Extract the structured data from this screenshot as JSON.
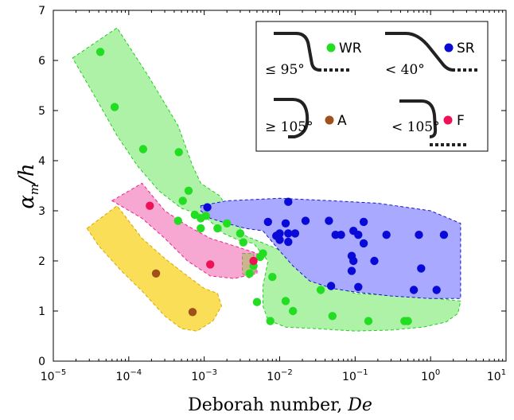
{
  "chart_data": {
    "type": "scatter",
    "x_scale": "log",
    "xlim": [
      1e-05,
      10
    ],
    "ylim": [
      0,
      7
    ],
    "x_ticks": [
      {
        "value": 1e-05,
        "base": "10",
        "exp": "−5"
      },
      {
        "value": 0.0001,
        "base": "10",
        "exp": "−4"
      },
      {
        "value": 0.001,
        "base": "10",
        "exp": "−3"
      },
      {
        "value": 0.01,
        "base": "10",
        "exp": "−2"
      },
      {
        "value": 0.1,
        "base": "10",
        "exp": "−1"
      },
      {
        "value": 1,
        "base": "10",
        "exp": "0"
      },
      {
        "value": 10,
        "base": "10",
        "exp": "1"
      }
    ],
    "y_ticks": [
      "0",
      "1",
      "2",
      "3",
      "4",
      "5",
      "6",
      "7"
    ],
    "xlabel": "Deborah number, De",
    "xlabel_prefix": "Deborah number, ",
    "xlabel_var": "De",
    "ylabel": "αm/h",
    "ylabel_main": "α",
    "ylabel_sub": "m",
    "ylabel_rest": "/h",
    "legend_position": "top-right",
    "grid": false,
    "legend": [
      {
        "key": "WR",
        "label": "WR",
        "color": "#22dd22",
        "condition": "≤ 95°"
      },
      {
        "key": "SR",
        "label": "SR",
        "color": "#0a0ad8",
        "condition": "< 40°"
      },
      {
        "key": "A",
        "label": "A",
        "color": "#a0501a",
        "condition": "≥ 105°"
      },
      {
        "key": "F",
        "label": "F",
        "color": "#ee1155",
        "condition": "< 105°"
      }
    ],
    "regions": [
      {
        "name": "WR",
        "fill": "#aef2a8",
        "stroke": "#22cc22",
        "boundary": [
          [
            1.8e-05,
            6.05
          ],
          [
            7e-05,
            6.65
          ],
          [
            0.00018,
            5.7
          ],
          [
            0.00045,
            4.7
          ],
          [
            0.0007,
            3.9
          ],
          [
            0.0009,
            3.55
          ],
          [
            0.0016,
            3.3
          ],
          [
            0.0035,
            2.5
          ],
          [
            0.009,
            2.25
          ],
          [
            0.018,
            1.95
          ],
          [
            0.04,
            1.55
          ],
          [
            0.1,
            1.35
          ],
          [
            0.4,
            1.3
          ],
          [
            1.2,
            1.25
          ],
          [
            2.5,
            1.2
          ],
          [
            2.3,
            0.95
          ],
          [
            1.6,
            0.78
          ],
          [
            0.8,
            0.68
          ],
          [
            0.3,
            0.62
          ],
          [
            0.1,
            0.6
          ],
          [
            0.03,
            0.65
          ],
          [
            0.012,
            0.68
          ],
          [
            0.007,
            0.82
          ],
          [
            0.006,
            1.1
          ],
          [
            0.006,
            1.5
          ],
          [
            0.007,
            2.0
          ],
          [
            0.0045,
            2.35
          ],
          [
            0.003,
            2.4
          ],
          [
            0.0018,
            2.55
          ],
          [
            0.001,
            2.9
          ],
          [
            0.0005,
            3.05
          ],
          [
            0.00025,
            3.4
          ],
          [
            0.00013,
            3.9
          ],
          [
            7e-05,
            4.5
          ],
          [
            3.5e-05,
            5.3
          ],
          [
            1.8e-05,
            6.05
          ]
        ]
      },
      {
        "name": "SR",
        "fill": "#a9a9ff",
        "stroke": "#1515cc",
        "boundary": [
          [
            0.0009,
            3.1
          ],
          [
            0.002,
            3.2
          ],
          [
            0.01,
            3.25
          ],
          [
            0.05,
            3.2
          ],
          [
            0.2,
            3.15
          ],
          [
            1,
            3.0
          ],
          [
            2.5,
            2.75
          ],
          [
            2.5,
            1.25
          ],
          [
            1,
            1.25
          ],
          [
            0.3,
            1.3
          ],
          [
            0.1,
            1.38
          ],
          [
            0.05,
            1.45
          ],
          [
            0.025,
            1.6
          ],
          [
            0.015,
            1.9
          ],
          [
            0.01,
            2.2
          ],
          [
            0.006,
            2.6
          ],
          [
            0.0035,
            2.65
          ],
          [
            0.002,
            2.75
          ],
          [
            0.0012,
            2.85
          ],
          [
            0.0009,
            3.0
          ],
          [
            0.0009,
            3.1
          ]
        ]
      },
      {
        "name": "F",
        "fill": "#f7a8d2",
        "stroke": "#ee2288",
        "boundary": [
          [
            6e-05,
            3.2
          ],
          [
            0.00015,
            3.55
          ],
          [
            0.0003,
            3.0
          ],
          [
            0.0006,
            2.7
          ],
          [
            0.0012,
            2.45
          ],
          [
            0.0025,
            2.3
          ],
          [
            0.005,
            2.15
          ],
          [
            0.005,
            1.75
          ],
          [
            0.0035,
            1.7
          ],
          [
            0.0025,
            1.65
          ],
          [
            0.0012,
            1.7
          ],
          [
            0.0006,
            2.0
          ],
          [
            0.0003,
            2.45
          ],
          [
            0.00015,
            2.85
          ],
          [
            6e-05,
            3.2
          ]
        ]
      },
      {
        "name": "A",
        "fill": "#fade58",
        "stroke": "#d6a800",
        "boundary": [
          [
            2.8e-05,
            2.65
          ],
          [
            7e-05,
            3.1
          ],
          [
            0.00015,
            2.45
          ],
          [
            0.0003,
            2.05
          ],
          [
            0.0006,
            1.7
          ],
          [
            0.001,
            1.45
          ],
          [
            0.0015,
            1.35
          ],
          [
            0.0017,
            1.1
          ],
          [
            0.0013,
            0.8
          ],
          [
            0.0008,
            0.6
          ],
          [
            0.0005,
            0.65
          ],
          [
            0.0003,
            0.9
          ],
          [
            0.00015,
            1.4
          ],
          [
            8e-05,
            1.8
          ],
          [
            4e-05,
            2.3
          ],
          [
            2.8e-05,
            2.65
          ]
        ]
      },
      {
        "name": "A/F overlap",
        "fill": "#c9b58e",
        "stroke": "#9a8866",
        "boundary": [
          [
            0.0032,
            2.15
          ],
          [
            0.0045,
            2.15
          ],
          [
            0.0048,
            1.8
          ],
          [
            0.004,
            1.65
          ],
          [
            0.0032,
            1.75
          ],
          [
            0.0032,
            2.15
          ]
        ]
      }
    ],
    "series": [
      {
        "name": "WR",
        "color": "#22dd22",
        "points": [
          [
            4.2e-05,
            6.17
          ],
          [
            6.5e-05,
            5.07
          ],
          [
            0.000155,
            4.23
          ],
          [
            0.00046,
            4.17
          ],
          [
            0.00052,
            3.2
          ],
          [
            0.00062,
            3.4
          ],
          [
            0.00075,
            2.92
          ],
          [
            0.0009,
            2.85
          ],
          [
            0.00105,
            2.9
          ],
          [
            0.00045,
            2.8
          ],
          [
            0.0009,
            2.65
          ],
          [
            0.0015,
            2.65
          ],
          [
            0.002,
            2.75
          ],
          [
            0.003,
            2.55
          ],
          [
            0.0033,
            2.37
          ],
          [
            0.004,
            1.75
          ],
          [
            0.0045,
            1.9
          ],
          [
            0.0055,
            2.08
          ],
          [
            0.006,
            2.15
          ],
          [
            0.008,
            1.68
          ],
          [
            0.005,
            1.18
          ],
          [
            0.0075,
            0.8
          ],
          [
            0.012,
            1.2
          ],
          [
            0.015,
            1.0
          ],
          [
            0.035,
            1.42
          ],
          [
            0.05,
            0.9
          ],
          [
            0.15,
            0.8
          ],
          [
            0.45,
            0.8
          ],
          [
            0.5,
            0.8
          ]
        ]
      },
      {
        "name": "SR",
        "color": "#0a0ad8",
        "points": [
          [
            0.0011,
            3.07
          ],
          [
            0.013,
            3.18
          ],
          [
            0.007,
            2.78
          ],
          [
            0.012,
            2.75
          ],
          [
            0.022,
            2.8
          ],
          [
            0.045,
            2.8
          ],
          [
            0.009,
            2.5
          ],
          [
            0.01,
            2.55
          ],
          [
            0.013,
            2.55
          ],
          [
            0.016,
            2.55
          ],
          [
            0.01,
            2.42
          ],
          [
            0.013,
            2.38
          ],
          [
            0.055,
            2.52
          ],
          [
            0.065,
            2.52
          ],
          [
            0.095,
            2.6
          ],
          [
            0.11,
            2.52
          ],
          [
            0.13,
            2.78
          ],
          [
            0.26,
            2.52
          ],
          [
            0.7,
            2.52
          ],
          [
            1.5,
            2.52
          ],
          [
            0.13,
            2.35
          ],
          [
            0.09,
            2.1
          ],
          [
            0.095,
            2.0
          ],
          [
            0.18,
            2.0
          ],
          [
            0.09,
            1.8
          ],
          [
            0.75,
            1.85
          ],
          [
            0.11,
            1.48
          ],
          [
            0.048,
            1.5
          ],
          [
            0.6,
            1.42
          ],
          [
            1.2,
            1.42
          ]
        ]
      },
      {
        "name": "A",
        "color": "#a0501a",
        "points": [
          [
            0.00023,
            1.75
          ],
          [
            0.0007,
            0.98
          ]
        ]
      },
      {
        "name": "F",
        "color": "#ee1155",
        "points": [
          [
            0.00019,
            3.1
          ],
          [
            0.0012,
            1.93
          ],
          [
            0.0045,
            2.0
          ]
        ]
      }
    ]
  }
}
